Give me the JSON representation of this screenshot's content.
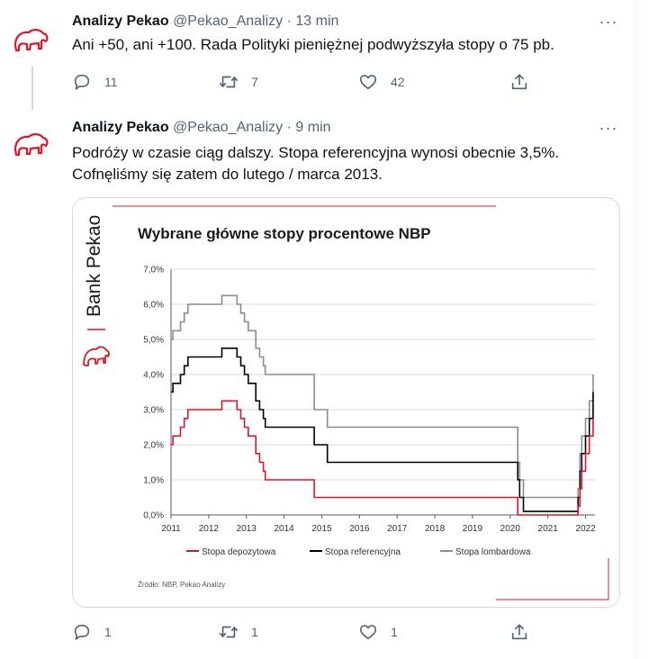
{
  "tweets": [
    {
      "name": "Analizy Pekao",
      "handle": "@Pekao_Analizy",
      "separator": "·",
      "time": "13 min",
      "text": "Ani +50, ani +100. Rada Polityki pieniężnej podwyższyła stopy o 75 pb.",
      "replies": "11",
      "retweets": "7",
      "likes": "42"
    },
    {
      "name": "Analizy Pekao",
      "handle": "@Pekao_Analizy",
      "separator": "·",
      "time": "9 min",
      "text_line1": "Podróży w czasie ciąg dalszy. Stopa referencyjna wynosi obecnie 3,5%.",
      "text_line2": "Cofnęliśmy się zatem do lutego / marca 2013.",
      "replies": "1",
      "retweets": "1",
      "likes": "1"
    }
  ],
  "more_label": "···",
  "colors": {
    "brand_red": "#d7182a",
    "deposit": "#d7182a",
    "reference": "#000000",
    "lombard": "#8c8c8c"
  },
  "icons": [
    "reply-icon",
    "retweet-icon",
    "like-icon",
    "share-icon",
    "more-icon",
    "bison-logo-icon"
  ],
  "chart_data": {
    "type": "line",
    "title": "Wybrane główne stopy procentowe NBP",
    "brand": "Bank Pekao",
    "source": "Źródło: NBP, Pekao Analizy",
    "x_ticks": [
      "2011",
      "2012",
      "2013",
      "2014",
      "2015",
      "2016",
      "2017",
      "2018",
      "2019",
      "2020",
      "2021",
      "2022"
    ],
    "y_ticks": [
      "0,0%",
      "1,0%",
      "2,0%",
      "3,0%",
      "4,0%",
      "5,0%",
      "6,0%",
      "7,0%"
    ],
    "xlim": [
      2011,
      2022.25
    ],
    "ylim": [
      0,
      7
    ],
    "legend_placement": "bottom",
    "series": [
      {
        "name": "Stopa depozytowa",
        "color": "#d7182a",
        "points": [
          [
            2011.0,
            2.0
          ],
          [
            2011.05,
            2.25
          ],
          [
            2011.25,
            2.5
          ],
          [
            2011.35,
            2.75
          ],
          [
            2011.45,
            3.0
          ],
          [
            2012.35,
            3.25
          ],
          [
            2012.75,
            3.0
          ],
          [
            2012.85,
            2.75
          ],
          [
            2012.95,
            2.5
          ],
          [
            2013.05,
            2.25
          ],
          [
            2013.25,
            1.75
          ],
          [
            2013.35,
            1.5
          ],
          [
            2013.45,
            1.25
          ],
          [
            2013.5,
            1.0
          ],
          [
            2014.8,
            0.5
          ],
          [
            2020.2,
            0.0
          ],
          [
            2021.8,
            0.25
          ],
          [
            2021.85,
            0.75
          ],
          [
            2021.9,
            1.25
          ],
          [
            2022.0,
            1.75
          ],
          [
            2022.1,
            2.25
          ],
          [
            2022.2,
            2.75
          ]
        ]
      },
      {
        "name": "Stopa referencyjna",
        "color": "#000000",
        "points": [
          [
            2011.0,
            3.5
          ],
          [
            2011.05,
            3.75
          ],
          [
            2011.25,
            4.0
          ],
          [
            2011.35,
            4.25
          ],
          [
            2011.45,
            4.5
          ],
          [
            2012.35,
            4.75
          ],
          [
            2012.75,
            4.5
          ],
          [
            2012.85,
            4.25
          ],
          [
            2012.95,
            4.0
          ],
          [
            2013.05,
            3.75
          ],
          [
            2013.25,
            3.25
          ],
          [
            2013.35,
            3.0
          ],
          [
            2013.45,
            2.75
          ],
          [
            2013.5,
            2.5
          ],
          [
            2014.8,
            2.0
          ],
          [
            2015.15,
            1.5
          ],
          [
            2020.2,
            1.0
          ],
          [
            2020.25,
            0.5
          ],
          [
            2020.35,
            0.1
          ],
          [
            2021.8,
            0.5
          ],
          [
            2021.85,
            1.25
          ],
          [
            2021.9,
            1.75
          ],
          [
            2022.0,
            2.25
          ],
          [
            2022.1,
            2.75
          ],
          [
            2022.2,
            3.5
          ]
        ]
      },
      {
        "name": "Stopa lombardowa",
        "color": "#8c8c8c",
        "points": [
          [
            2011.0,
            5.0
          ],
          [
            2011.05,
            5.25
          ],
          [
            2011.25,
            5.5
          ],
          [
            2011.35,
            5.75
          ],
          [
            2011.45,
            6.0
          ],
          [
            2012.35,
            6.25
          ],
          [
            2012.75,
            6.0
          ],
          [
            2012.85,
            5.75
          ],
          [
            2012.95,
            5.5
          ],
          [
            2013.05,
            5.25
          ],
          [
            2013.25,
            4.75
          ],
          [
            2013.35,
            4.5
          ],
          [
            2013.45,
            4.25
          ],
          [
            2013.5,
            4.0
          ],
          [
            2014.8,
            3.0
          ],
          [
            2015.15,
            2.5
          ],
          [
            2020.2,
            1.5
          ],
          [
            2020.25,
            1.0
          ],
          [
            2020.35,
            0.5
          ],
          [
            2021.8,
            0.75
          ],
          [
            2021.85,
            1.75
          ],
          [
            2021.9,
            2.25
          ],
          [
            2022.0,
            2.75
          ],
          [
            2022.1,
            3.25
          ],
          [
            2022.2,
            4.0
          ]
        ]
      }
    ]
  }
}
